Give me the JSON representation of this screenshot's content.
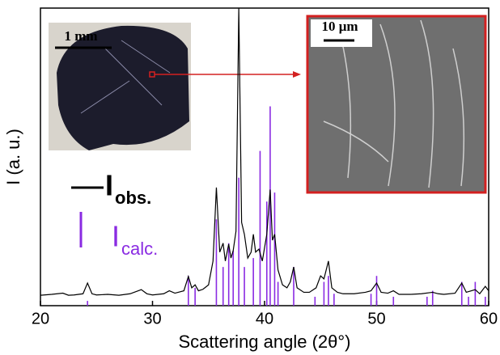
{
  "chart_data": {
    "type": "line",
    "xlabel": "Scattering angle (2θ°)",
    "ylabel": "I (a. u.)",
    "xlim": [
      20,
      60
    ],
    "xticks": [
      20,
      30,
      40,
      50,
      60
    ],
    "ylim": [
      0,
      100
    ],
    "series": [
      {
        "name": "I",
        "name_sub": "obs.",
        "color": "#000000",
        "style": "line",
        "x": [
          20,
          21,
          22,
          22.5,
          23,
          23.8,
          24.2,
          24.6,
          25,
          26,
          27,
          28,
          29,
          29.5,
          30,
          31,
          31.5,
          32,
          32.8,
          33.2,
          33.5,
          33.8,
          34.1,
          34.5,
          35,
          35.4,
          35.7,
          36,
          36.3,
          36.5,
          36.8,
          37,
          37.2,
          37.45,
          37.7,
          37.95,
          38.2,
          38.5,
          38.8,
          39,
          39.2,
          39.5,
          39.8,
          40.2,
          40.5,
          40.7,
          40.9,
          41.2,
          41.6,
          42,
          42.3,
          42.6,
          42.9,
          43.5,
          44,
          44.6,
          45,
          45.3,
          45.7,
          46,
          46.5,
          47,
          48,
          49,
          49.5,
          50,
          50.4,
          51,
          51.5,
          52,
          53,
          54,
          55,
          55.5,
          56,
          57,
          57.6,
          58,
          58.8,
          59.2,
          59.7,
          60
        ],
        "values": [
          3.5,
          3.8,
          4.2,
          3.5,
          3.6,
          4,
          7.6,
          4,
          3.6,
          3.8,
          3.5,
          4,
          5.4,
          4,
          3.6,
          4,
          5,
          4.2,
          5,
          9.8,
          6,
          7,
          5,
          5.5,
          7,
          15,
          39.7,
          18,
          21,
          15,
          20.7,
          16,
          18.5,
          25,
          100,
          28,
          24,
          16,
          18,
          24,
          18,
          19,
          15,
          24,
          39,
          22,
          24,
          12,
          7,
          6,
          8,
          13,
          6,
          4.5,
          4.5,
          6,
          10,
          9,
          15,
          6,
          4.5,
          4,
          4,
          4.5,
          5,
          7.6,
          4.5,
          4.2,
          5,
          3.8,
          3.8,
          4,
          4.5,
          4,
          3.8,
          4.2,
          7.6,
          4.5,
          5.4,
          4,
          6.5,
          5
        ]
      },
      {
        "name": "I",
        "name_sub": "calc.",
        "color": "#8a2be2",
        "style": "sticks",
        "x": [
          24.2,
          33.2,
          33.8,
          35.7,
          36.3,
          36.8,
          37.2,
          37.7,
          38.2,
          39,
          39.6,
          40.2,
          40.5,
          40.9,
          41.2,
          42.6,
          44.5,
          45.3,
          45.7,
          46.2,
          49.5,
          50,
          51.5,
          54.5,
          55,
          57.6,
          58.2,
          58.8,
          59.7
        ],
        "values": [
          1.6,
          10,
          6,
          29,
          13,
          21,
          18.5,
          43,
          13,
          16,
          52,
          35,
          67,
          38,
          8,
          13,
          3,
          8,
          10,
          4,
          4,
          10,
          3,
          3,
          5,
          8,
          3,
          8,
          3
        ]
      }
    ],
    "annotations": {
      "photo_scale": "1 mm",
      "sem_scale": "10 μm"
    }
  }
}
